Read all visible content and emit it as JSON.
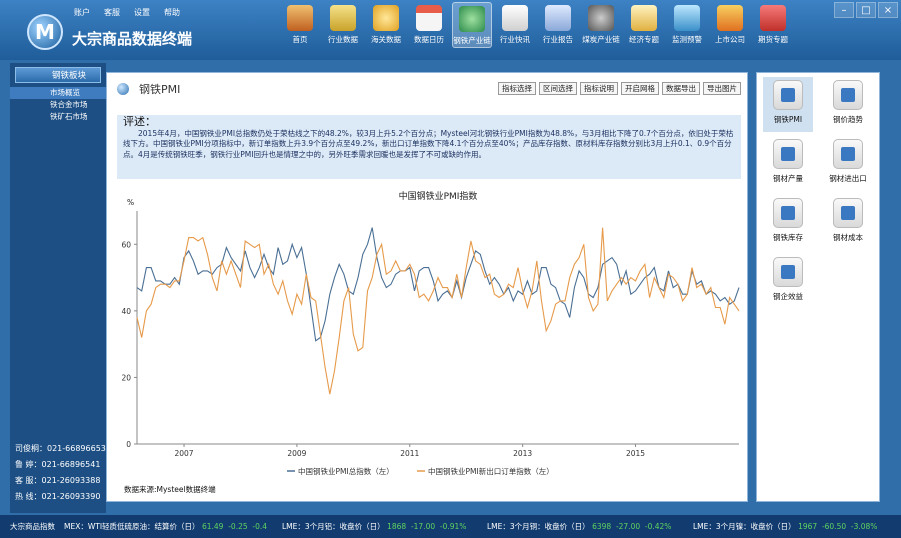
{
  "app": {
    "title": "大宗商品数据终端",
    "logo": "M"
  },
  "top_menu": [
    "账户",
    "客服",
    "设置",
    "帮助"
  ],
  "nav": [
    {
      "label": "首页"
    },
    {
      "label": "行业数据"
    },
    {
      "label": "海关数据"
    },
    {
      "label": "数据日历"
    },
    {
      "label": "钢铁产业链"
    },
    {
      "label": "行业快讯"
    },
    {
      "label": "行业报告"
    },
    {
      "label": "煤炭产业链"
    },
    {
      "label": "经济专题"
    },
    {
      "label": "监测预警"
    },
    {
      "label": "上市公司"
    },
    {
      "label": "期货专题"
    }
  ],
  "win_controls": [
    "–",
    "□",
    "×"
  ],
  "sidebar": {
    "header": "钢铁板块",
    "items": [
      "市场概览",
      "铁合金市场",
      "铁矿石市场"
    ]
  },
  "contacts": [
    "司俊桐：021-66896653",
    "鲁  婷：021-66896541",
    "客  服：021-26093388",
    "热  线：021-26093390"
  ],
  "page": {
    "title": "钢铁PMI",
    "toolbar": [
      "指标选择",
      "区间选择",
      "指标说明",
      "开启网格",
      "数据导出",
      "导出图片"
    ]
  },
  "commentary": {
    "title": "评述：",
    "text": "2015年4月，中国钢铁业PMI总指数仍处于荣枯线之下的48.2%，较3月上升5.2个百分点；Mysteel河北钢铁行业PMI指数为48.8%，与3月相比下降了0.7个百分点，依旧处于荣枯线下方。中国钢铁业PMI分项指标中，新订单指数上升3.9个百分点至49.2%，新出口订单指数下降4.1个百分点至40%；产品库存指数、原材料库存指数分别比3月上升0.1、0.9个百分点。4月是传统钢铁旺季，钢铁行业PMI回升也是情理之中的，另外旺季需求回暖也是发挥了不可或缺的作用。"
  },
  "source": "数据来源:Mysteel数据终端",
  "right_panel": [
    "钢铁PMI",
    "钢价趋势",
    "钢材产量",
    "钢材进出口",
    "钢铁库存",
    "钢材成本",
    "钢企效益"
  ],
  "status": {
    "label": "大宗商品指数",
    "items": [
      {
        "name": "MEX：WTI轻质低硫原油：结算价（日）",
        "value": "61.49",
        "chg": "-0.25",
        "pct": "-0.4"
      },
      {
        "name": "LME：3个月铝：收盘价（日）",
        "value": "1868",
        "chg": "-17.00",
        "pct": "-0.91%"
      },
      {
        "name": "LME：3个月铜：收盘价（日）",
        "value": "6398",
        "chg": "-27.00",
        "pct": "-0.42%"
      },
      {
        "name": "LME：3个月镍：收盘价（日）",
        "value": "1967",
        "chg": "-60.50",
        "pct": "-3.08%"
      }
    ]
  },
  "chart_data": {
    "type": "line",
    "title": "中国钢铁业PMI指数",
    "ylabel": "%",
    "ylim": [
      0,
      70
    ],
    "yticks": [
      0,
      20,
      40,
      60
    ],
    "xlabels": [
      "2007",
      "2009",
      "2011",
      "2013",
      "2015"
    ],
    "series": [
      {
        "name": "中国钢铁业PMI总指数（左）",
        "color": "#4a6f94",
        "values": [
          47,
          46,
          53,
          53,
          49,
          49,
          48,
          48,
          50,
          48,
          56,
          58,
          55,
          51,
          52,
          52,
          51,
          53,
          54,
          59,
          56,
          54,
          52,
          58,
          53,
          50,
          53,
          57,
          53,
          51,
          59,
          54,
          55,
          60,
          56,
          59,
          51,
          41,
          31,
          32,
          37,
          45,
          50,
          54,
          51,
          46,
          45,
          50,
          57,
          60,
          65,
          56,
          50,
          47,
          48,
          51,
          52,
          52,
          53,
          46,
          52,
          53,
          53,
          49,
          43,
          45,
          46,
          44,
          49,
          44,
          50,
          54,
          58,
          57,
          52,
          48,
          50,
          48,
          45,
          47,
          43,
          46,
          45,
          49,
          45,
          46,
          53,
          53,
          48,
          47,
          43,
          42,
          38,
          47,
          52,
          50,
          45,
          44,
          47,
          54,
          55,
          56,
          54,
          48,
          52,
          45,
          46,
          48,
          50,
          51,
          53,
          47,
          46,
          52,
          47,
          48,
          45,
          45,
          52,
          48,
          49,
          45,
          46,
          45,
          43,
          44,
          42,
          43,
          47
        ]
      },
      {
        "name": "中国钢铁业PMI新出口订单指数（左）",
        "color": "#e69a4a",
        "values": [
          38,
          32,
          40,
          42,
          47,
          48,
          48,
          47,
          49,
          49,
          55,
          62,
          62,
          61,
          62,
          57,
          50,
          46,
          55,
          51,
          55,
          51,
          47,
          61,
          60,
          59,
          60,
          51,
          54,
          48,
          45,
          49,
          43,
          39,
          45,
          42,
          51,
          44,
          43,
          33,
          23,
          15,
          22,
          32,
          43,
          47,
          33,
          28,
          29,
          46,
          50,
          57,
          60,
          51,
          52,
          55,
          52,
          52,
          54,
          51,
          44,
          45,
          43,
          46,
          50,
          47,
          47,
          44,
          51,
          44,
          53,
          61,
          55,
          54,
          50,
          51,
          45,
          44,
          45,
          48,
          47,
          53,
          46,
          41,
          46,
          55,
          43,
          34,
          37,
          42,
          43,
          43,
          50,
          54,
          56,
          60,
          44,
          40,
          42,
          65,
          43,
          46,
          48,
          50,
          48,
          50,
          49,
          52,
          54,
          44,
          50,
          47,
          44,
          51,
          50,
          48,
          43,
          45,
          53,
          47,
          48,
          45,
          47,
          41,
          41,
          36,
          44,
          42,
          40
        ]
      }
    ]
  }
}
